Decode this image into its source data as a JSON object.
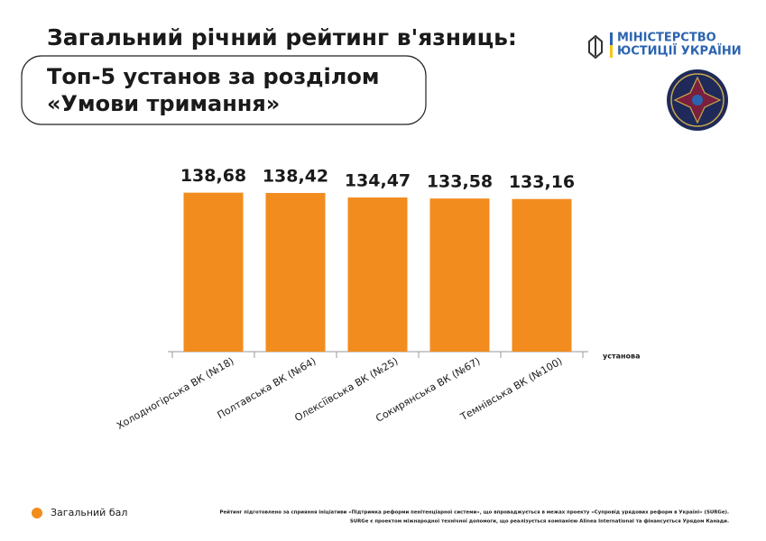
{
  "chart_data": {
    "type": "bar",
    "title": "Загальний річний рейтинг в'язниць:",
    "subtitle": [
      "Топ-5 установ за розділом",
      "«Умови тримання»"
    ],
    "categories": [
      "Холодногірська ВК (№18)",
      "Полтавська ВК (№64)",
      "Олексіївська ВК (№25)",
      "Сокирянська ВК (№67)",
      "Темнівська ВК (№100)"
    ],
    "series": [
      {
        "name": "Загальний бал",
        "color": "#f28c1e",
        "values": [
          138.68,
          138.42,
          134.47,
          133.58,
          133.16
        ],
        "value_labels": [
          "138,68",
          "138,42",
          "134,47",
          "133,58",
          "133,16"
        ]
      }
    ],
    "ylim": [
      0,
      140
    ],
    "x_label": "установа"
  },
  "logo": {
    "lines": [
      "МІНІСТЕРСТВО",
      "ЮСТИЦІЇ УКРАЇНИ"
    ]
  },
  "footer": [
    "Рейтинг підготовлено за сприяння ініціативи «Підтримка реформи пенітенціарної системи», що впроваджується в межах проекту «Супровід урядових реформ в Україні» (SURGe).",
    "SURGe є проектом міжнародної технічної допомоги, що реалізується компанією Alinea International та фінансується Урядом Канади."
  ]
}
